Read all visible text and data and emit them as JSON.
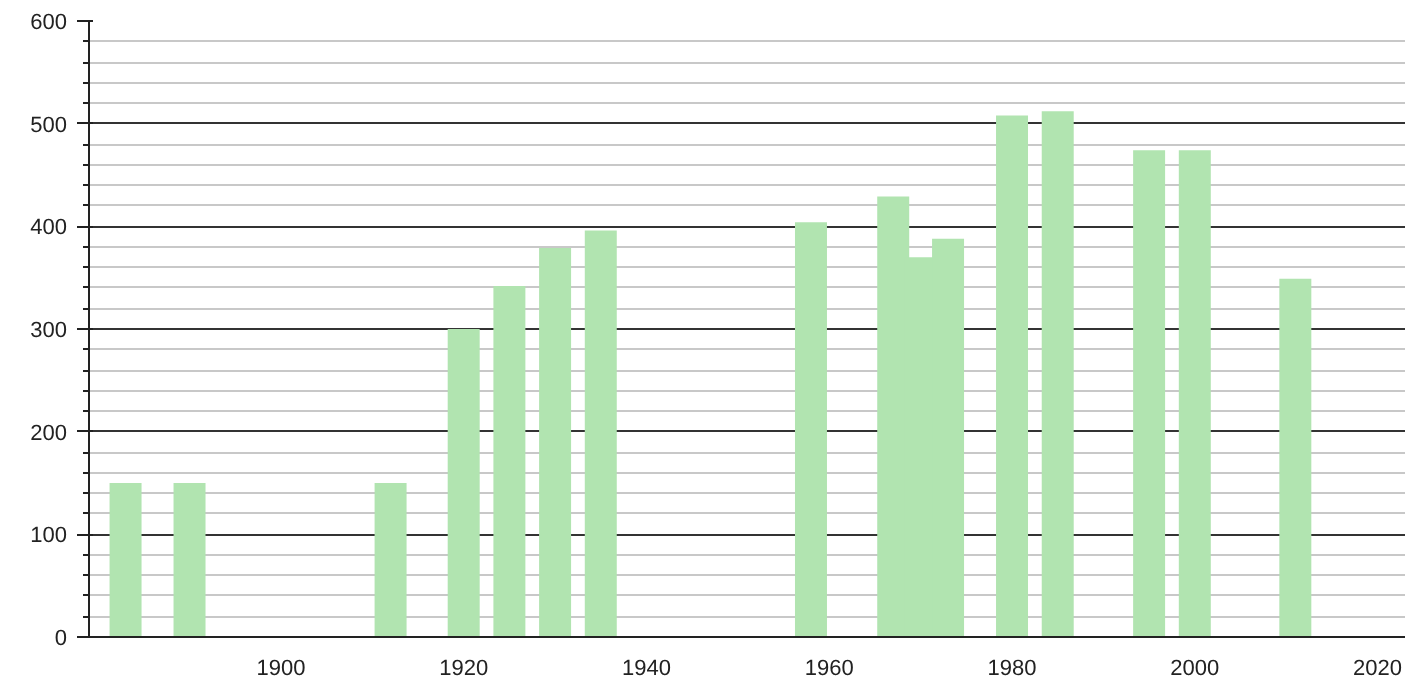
{
  "chart_data": {
    "type": "bar",
    "x": [
      1883,
      1890,
      1912,
      1920,
      1925,
      1930,
      1935,
      1958,
      1967,
      1970,
      1973,
      1980,
      1985,
      1995,
      2000,
      2011
    ],
    "values": [
      150,
      150,
      150,
      300,
      342,
      379,
      396,
      404,
      429,
      370,
      388,
      508,
      512,
      474,
      474,
      349
    ],
    "color": "#b1e4b0",
    "xlim": [
      1879,
      2023
    ],
    "xticks": [
      1900,
      1920,
      1940,
      1960,
      1980,
      2000,
      2020
    ],
    "ylim": [
      0,
      600
    ],
    "yticks": [
      0,
      100,
      200,
      300,
      400,
      500,
      600
    ],
    "grid": "y"
  }
}
